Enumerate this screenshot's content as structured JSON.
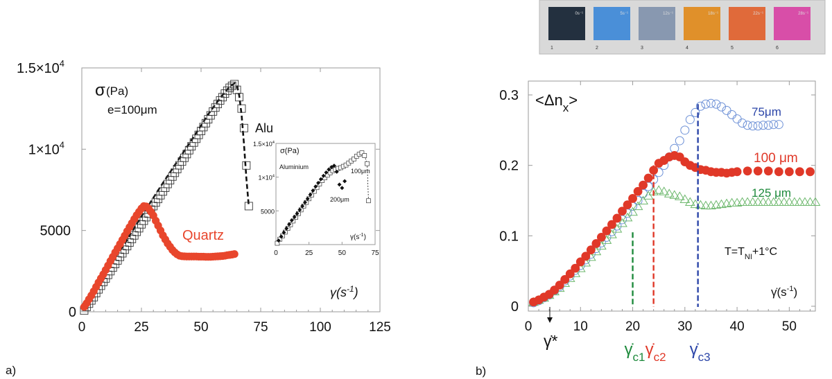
{
  "colors": {
    "red": "#e8462c",
    "red_b": "#e03828",
    "blue": "#2b45a8",
    "blue_markers": "#6b8fd6",
    "green": "#1e8a3c",
    "green_markers": "#6db86d",
    "black": "#111111",
    "frame": "#9a9a9a",
    "strip": [
      "#23303f",
      "#4a8fd8",
      "#8898b0",
      "#e0902a",
      "#e06a3a",
      "#d84ea8"
    ]
  },
  "strip": {
    "top_labels": [
      "0s⁻¹",
      "5s⁻¹",
      "12s⁻¹",
      "18s⁻¹",
      "22s⁻¹",
      "28s⁻¹"
    ],
    "bottom_labels": [
      "1",
      "2",
      "3",
      "4",
      "5",
      "6"
    ]
  },
  "panel_labels": {
    "a": "a)",
    "b": "b)"
  },
  "chart_data": [
    {
      "id": "a",
      "type": "line",
      "xlim": [
        0,
        125
      ],
      "ylim": [
        0,
        15000
      ],
      "xticks": [
        "0",
        "25",
        "50",
        "75",
        "100",
        "125"
      ],
      "xtick_values": [
        0,
        25,
        50,
        75,
        100,
        125
      ],
      "ytick_values": [
        0,
        5000,
        10000,
        15000
      ],
      "ytick_labels": [
        "0",
        "5000",
        "1×10",
        "1.5×10"
      ],
      "ytick_sup": [
        "",
        "",
        "4",
        "4"
      ],
      "sigma_label": "σ",
      "sigma_unit": "(Pa)",
      "thickness_label": "e=100μm",
      "xlabel": "γ(s",
      "xlabel_sup": "-1",
      "xlabel_end": ")",
      "series": [
        {
          "name": "Alu",
          "marker": "square-open",
          "x": [
            1,
            2,
            3,
            4,
            5,
            6,
            7,
            8,
            9,
            10,
            11,
            12,
            13,
            14,
            15,
            16,
            17,
            18,
            19,
            20,
            21,
            22,
            23,
            24,
            25,
            26,
            27,
            28,
            29,
            30,
            31,
            32,
            33,
            34,
            35,
            36,
            37,
            38,
            39,
            40,
            41,
            42,
            43,
            44,
            45,
            46,
            47,
            48,
            49,
            50,
            51,
            52,
            53,
            54,
            55,
            56,
            57,
            58,
            59,
            60,
            61,
            62,
            63,
            64,
            65,
            66,
            67,
            68,
            69,
            70
          ],
          "y": [
            80,
            300,
            500,
            700,
            900,
            1150,
            1380,
            1600,
            1830,
            2050,
            2270,
            2500,
            2720,
            2940,
            3160,
            3380,
            3600,
            3820,
            4040,
            4260,
            4480,
            4700,
            4920,
            5140,
            5380,
            5600,
            5820,
            6040,
            6280,
            6500,
            6720,
            6940,
            7170,
            7400,
            7630,
            7860,
            8090,
            8320,
            8550,
            8780,
            9010,
            9240,
            9470,
            9700,
            9940,
            10180,
            10410,
            10640,
            10880,
            11120,
            11360,
            11600,
            11840,
            12080,
            12320,
            12560,
            12780,
            13000,
            13200,
            13420,
            13600,
            13780,
            13900,
            14000,
            13650,
            13200,
            12500,
            11300,
            9000,
            6500
          ]
        },
        {
          "name": "Quartz",
          "marker": "circle-filled",
          "x": [
            1,
            2,
            3,
            4,
            5,
            6,
            7,
            8,
            9,
            10,
            11,
            12,
            13,
            14,
            15,
            16,
            17,
            18,
            19,
            20,
            21,
            22,
            23,
            24,
            25,
            26,
            27,
            28,
            29,
            30,
            31,
            32,
            33,
            34,
            35,
            36,
            37,
            38,
            39,
            40,
            41,
            42,
            43,
            44,
            45,
            46,
            47,
            48,
            49,
            50,
            51,
            52,
            53,
            54,
            55,
            56,
            57,
            58,
            59,
            60,
            61,
            62,
            63,
            64
          ],
          "y": [
            300,
            520,
            770,
            1000,
            1260,
            1530,
            1800,
            2050,
            2300,
            2570,
            2840,
            3120,
            3380,
            3650,
            3900,
            4160,
            4420,
            4680,
            4950,
            5200,
            5450,
            5700,
            5940,
            6150,
            6350,
            6500,
            6480,
            6350,
            6150,
            5920,
            5600,
            5300,
            5000,
            4700,
            4450,
            4200,
            4000,
            3800,
            3650,
            3530,
            3450,
            3420,
            3410,
            3400,
            3400,
            3400,
            3400,
            3400,
            3390,
            3390,
            3390,
            3380,
            3380,
            3380,
            3390,
            3400,
            3410,
            3420,
            3430,
            3450,
            3480,
            3500,
            3520,
            3550
          ]
        }
      ],
      "fit_line": {
        "x": [
          3,
          8,
          13,
          18,
          23,
          28,
          33,
          38,
          43,
          48,
          53,
          58,
          62,
          64,
          65,
          66,
          67,
          68,
          69,
          70
        ],
        "y": [
          600,
          1900,
          3100,
          4200,
          5400,
          6550,
          7700,
          8800,
          9900,
          11000,
          12150,
          13150,
          13850,
          14050,
          13950,
          13300,
          12100,
          10300,
          8200,
          6500
        ]
      },
      "annotations": {
        "alu": "Alu",
        "quartz": "Quartz"
      },
      "inset": {
        "xlim": [
          0,
          75
        ],
        "ylim": [
          0,
          15000
        ],
        "xticks": [
          "0",
          "25",
          "50",
          "75"
        ],
        "xtick_values": [
          0,
          25,
          50,
          75
        ],
        "ytick_values": [
          5000,
          10000,
          15000
        ],
        "ytick_labels": [
          "5000",
          "1×10",
          "1.5×10"
        ],
        "ytick_sup": [
          "",
          "4",
          "4"
        ],
        "sigma_label": "σ(Pa)",
        "material_label": "Aluminium",
        "xlabel": "γ(s",
        "xlabel_sup": "-1",
        "xlabel_end": ")",
        "series": [
          {
            "name": "100μm",
            "marker": "square-open",
            "x": [
              1,
              3,
              5,
              7,
              9,
              11,
              13,
              15,
              17,
              19,
              21,
              23,
              25,
              27,
              29,
              31,
              33,
              35,
              37,
              39,
              41,
              43,
              45,
              47,
              49,
              51,
              53,
              55,
              57,
              59,
              61,
              63,
              65,
              67,
              69,
              70
            ],
            "y": [
              200,
              800,
              1300,
              1850,
              2400,
              2950,
              3500,
              4050,
              4600,
              5150,
              5700,
              6250,
              6800,
              7350,
              7900,
              8450,
              9000,
              9500,
              9900,
              10300,
              10650,
              10950,
              11150,
              11300,
              11400,
              11600,
              11800,
              12100,
              12400,
              12700,
              13100,
              13400,
              13600,
              13200,
              12000,
              6500
            ]
          },
          {
            "name": "200μm",
            "marker": "diamond-filled",
            "x": [
              2,
              4,
              6,
              8,
              10,
              12,
              14,
              16,
              18,
              20,
              22,
              24,
              26,
              28,
              30,
              32,
              34,
              36,
              38,
              40,
              42,
              44,
              46,
              48,
              50,
              52
            ],
            "y": [
              600,
              1200,
              1800,
              2400,
              3000,
              3600,
              4100,
              4600,
              5150,
              5700,
              6250,
              6800,
              7400,
              8000,
              8600,
              9150,
              9700,
              10200,
              10700,
              11150,
              11500,
              11700,
              10800,
              8900,
              8400,
              9400
            ]
          }
        ]
      }
    },
    {
      "id": "b",
      "type": "scatter",
      "xlim": [
        0,
        55
      ],
      "ylim": [
        0,
        0.3
      ],
      "xticks": [
        "0",
        "10",
        "20",
        "30",
        "40",
        "50"
      ],
      "xtick_values": [
        0,
        10,
        20,
        30,
        40,
        50
      ],
      "ytick_values": [
        0,
        0.1,
        0.2,
        0.3
      ],
      "yticks": [
        "0",
        "0.1",
        "0.2",
        "0.3"
      ],
      "ylabel_main": "<Δn",
      "ylabel_sub": "x",
      "ylabel_end": ">",
      "xlabel_main": "γ̇(s",
      "xlabel_sup": "-1",
      "xlabel_end": ")",
      "temperature_main": "T=T",
      "temperature_sub": "NI",
      "temperature_end": "+1°C",
      "series": [
        {
          "name": "75μm",
          "marker": "circle-open",
          "x": [
            1,
            2,
            3,
            4,
            5,
            6,
            7,
            8,
            9,
            10,
            11,
            12,
            13,
            14,
            15,
            16,
            17,
            18,
            19,
            20,
            21,
            22,
            23,
            24,
            25,
            26,
            27,
            28,
            29,
            30,
            31,
            32,
            33,
            34,
            35,
            36,
            37,
            38,
            39,
            40,
            41,
            42,
            43,
            44,
            45,
            46,
            47,
            48
          ],
          "y": [
            0.005,
            0.008,
            0.012,
            0.016,
            0.022,
            0.028,
            0.036,
            0.043,
            0.051,
            0.058,
            0.066,
            0.074,
            0.082,
            0.09,
            0.098,
            0.106,
            0.114,
            0.123,
            0.132,
            0.142,
            0.15,
            0.16,
            0.17,
            0.18,
            0.19,
            0.2,
            0.212,
            0.224,
            0.235,
            0.25,
            0.265,
            0.275,
            0.284,
            0.287,
            0.288,
            0.287,
            0.283,
            0.278,
            0.272,
            0.266,
            0.26,
            0.257,
            0.256,
            0.256,
            0.257,
            0.257,
            0.258,
            0.258
          ]
        },
        {
          "name": "100 μm",
          "marker": "circle-filled",
          "x": [
            1,
            2,
            3,
            4,
            5,
            6,
            7,
            8,
            9,
            10,
            11,
            12,
            13,
            14,
            15,
            16,
            17,
            18,
            19,
            20,
            21,
            22,
            23,
            24,
            25,
            26,
            27,
            28,
            29,
            30,
            31,
            32,
            33,
            34,
            35,
            36,
            37,
            38,
            39,
            40,
            42,
            44,
            46,
            48,
            50,
            52,
            54
          ],
          "y": [
            0.006,
            0.009,
            0.013,
            0.017,
            0.023,
            0.03,
            0.038,
            0.046,
            0.054,
            0.063,
            0.071,
            0.08,
            0.089,
            0.098,
            0.107,
            0.116,
            0.125,
            0.135,
            0.144,
            0.153,
            0.163,
            0.172,
            0.182,
            0.193,
            0.203,
            0.207,
            0.212,
            0.214,
            0.212,
            0.205,
            0.2,
            0.197,
            0.194,
            0.193,
            0.191,
            0.19,
            0.19,
            0.189,
            0.19,
            0.191,
            0.192,
            0.192,
            0.192,
            0.191,
            0.191,
            0.191,
            0.191
          ]
        },
        {
          "name": "125 μm",
          "marker": "triangle-open",
          "x": [
            1,
            2,
            3,
            4,
            5,
            6,
            7,
            8,
            9,
            10,
            11,
            12,
            13,
            14,
            15,
            16,
            17,
            18,
            19,
            20,
            21,
            22,
            23,
            24,
            25,
            26,
            27,
            28,
            29,
            30,
            31,
            32,
            33,
            34,
            35,
            36,
            37,
            38,
            39,
            40,
            41,
            42,
            43,
            44,
            45,
            46,
            47,
            48,
            49,
            50,
            51,
            52,
            53,
            54,
            55
          ],
          "y": [
            0.006,
            0.009,
            0.012,
            0.016,
            0.021,
            0.026,
            0.033,
            0.04,
            0.047,
            0.054,
            0.062,
            0.07,
            0.078,
            0.086,
            0.094,
            0.102,
            0.11,
            0.118,
            0.126,
            0.134,
            0.142,
            0.15,
            0.157,
            0.163,
            0.165,
            0.163,
            0.16,
            0.158,
            0.156,
            0.152,
            0.148,
            0.145,
            0.144,
            0.143,
            0.143,
            0.144,
            0.145,
            0.146,
            0.147,
            0.147,
            0.148,
            0.148,
            0.148,
            0.148,
            0.148,
            0.148,
            0.148,
            0.148,
            0.148,
            0.148,
            0.148,
            0.148,
            0.148,
            0.148,
            0.148
          ]
        }
      ],
      "critical_lines": [
        {
          "x": 20,
          "y_top": 0.105,
          "color": "#1e8a3c",
          "label": "γ̇",
          "sub": "c1"
        },
        {
          "x": 24,
          "y_top": 0.2,
          "color": "#e03828",
          "label": "γ̇",
          "sub": "c2"
        },
        {
          "x": 32.5,
          "y_top": 0.287,
          "color": "#2b45a8",
          "label": "γ̇",
          "sub": "c3"
        }
      ],
      "gamma_star": {
        "x": 4,
        "label": "γ̇*"
      }
    }
  ]
}
